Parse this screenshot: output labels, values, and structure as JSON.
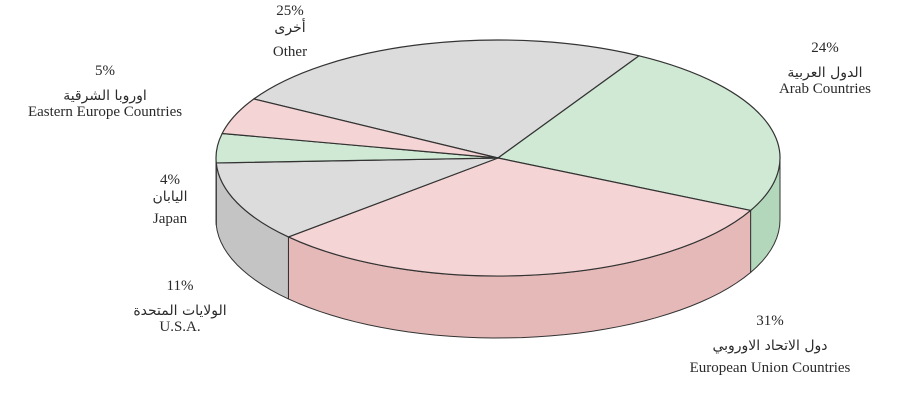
{
  "chart_data": {
    "type": "pie",
    "style": "3d",
    "slices": [
      {
        "key": "other",
        "value": 25,
        "pct_label": "25%",
        "label_ar": "أخرى",
        "label_en": "Other",
        "color": "#dcdcdc",
        "side": "#c4c4c4"
      },
      {
        "key": "arab",
        "value": 24,
        "pct_label": "24%",
        "label_ar": "الدول العربية",
        "label_en": "Arab Countries",
        "color": "#cfe9d4",
        "side": "#b3d7bb"
      },
      {
        "key": "eu",
        "value": 31,
        "pct_label": "31%",
        "label_ar": "دول الاتحاد الاوروبي",
        "label_en": "European Union Countries",
        "color": "#f4d4d4",
        "side": "#e6b9b9"
      },
      {
        "key": "usa",
        "value": 11,
        "pct_label": "11%",
        "label_ar": "الولايات المتحدة",
        "label_en": "U.S.A.",
        "color": "#dcdcdc",
        "side": "#c4c4c4"
      },
      {
        "key": "japan",
        "value": 4,
        "pct_label": "4%",
        "label_ar": "اليابان",
        "label_en": "Japan",
        "color": "#cfe9d4",
        "side": "#b3d7bb"
      },
      {
        "key": "eeurope",
        "value": 5,
        "pct_label": "5%",
        "label_ar": "اوروبا الشرقية",
        "label_en": "Eastern Europe Countries",
        "color": "#f4d4d4",
        "side": "#e6b9b9"
      }
    ]
  }
}
